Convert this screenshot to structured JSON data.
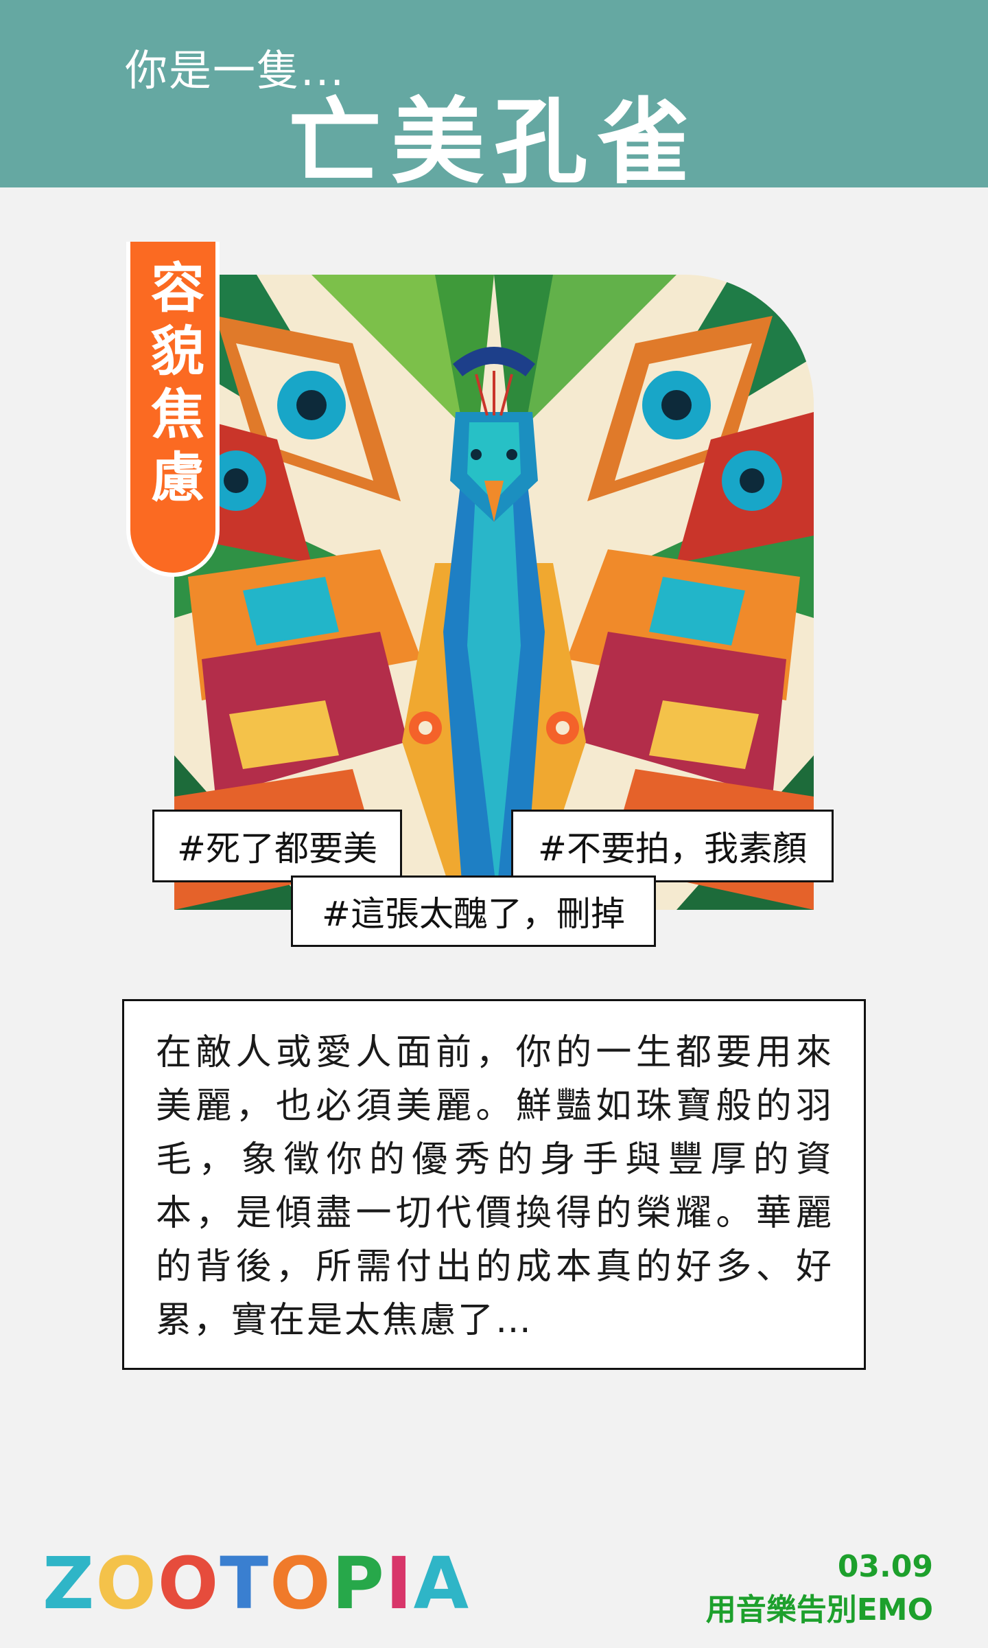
{
  "header": {
    "pre_title": "你是一隻...",
    "title": "亡美孔雀"
  },
  "ribbon": {
    "label": "容貌焦慮"
  },
  "tags": [
    "#死了都要美",
    "#不要拍，我素顏",
    "#這張太醜了，刪掉"
  ],
  "description": "在敵人或愛人面前，你的一生都要用來美麗，也必須美麗。鮮豔如珠寶般的羽毛，象徵你的優秀的身手與豐厚的資本，是傾盡一切代價換得的榮耀。華麗的背後，所需付出的成本真的好多、好累，實在是太焦慮了…",
  "footer": {
    "logo": "ZOOTOPIA",
    "date": "03.09",
    "event": "用音樂告別EMO"
  },
  "colors": {
    "header_bg": "#65a8a2",
    "ribbon": "#fb6a22",
    "footer_text": "#1da02c",
    "page_bg": "#f2f2f2"
  },
  "illustration": {
    "subject": "peacock-illustration"
  }
}
